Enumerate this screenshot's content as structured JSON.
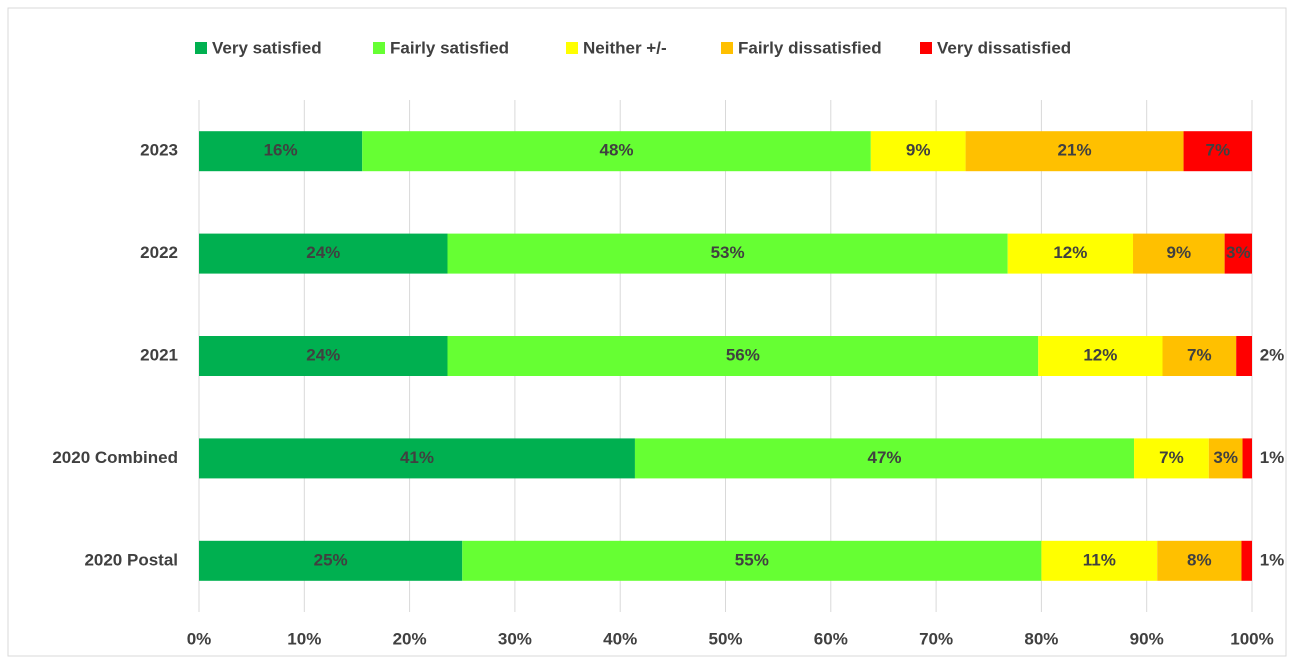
{
  "chart_data": {
    "type": "stacked_bar_horizontal",
    "categories": [
      "2023",
      "2022",
      "2021",
      "2020 Combined",
      "2020 Postal"
    ],
    "series": [
      {
        "name": "Very satisfied",
        "color": "#00b050",
        "values": [
          15.5,
          23.6,
          23.6,
          41.4,
          25.0
        ],
        "value_labels": [
          "16%",
          "24%",
          "24%",
          "41%",
          "25%"
        ]
      },
      {
        "name": "Fairly satisfied",
        "color": "#66ff33",
        "values": [
          48.3,
          53.2,
          56.1,
          47.4,
          55.0
        ],
        "value_labels": [
          "48%",
          "53%",
          "56%",
          "47%",
          "55%"
        ]
      },
      {
        "name": "Neither +/-",
        "color": "#ffff00",
        "values": [
          9.0,
          11.9,
          11.8,
          7.1,
          11.0
        ],
        "value_labels": [
          "9%",
          "12%",
          "12%",
          "7%",
          "11%"
        ]
      },
      {
        "name": "Fairly dissatisfied",
        "color": "#ffc000",
        "values": [
          20.7,
          8.7,
          7.0,
          3.2,
          8.0
        ],
        "value_labels": [
          "21%",
          "9%",
          "7%",
          "3%",
          "8%"
        ]
      },
      {
        "name": "Very dissatisfied",
        "color": "#ff0000",
        "values": [
          6.5,
          2.6,
          1.5,
          0.9,
          1.0
        ],
        "value_labels": [
          "7%",
          "3%",
          "2%",
          "1%",
          "1%"
        ]
      }
    ],
    "xlim": [
      0,
      100
    ],
    "xticks": [
      {
        "value": 0,
        "label": "0%"
      },
      {
        "value": 10,
        "label": "10%"
      },
      {
        "value": 20,
        "label": "20%"
      },
      {
        "value": 30,
        "label": "30%"
      },
      {
        "value": 40,
        "label": "40%"
      },
      {
        "value": 50,
        "label": "50%"
      },
      {
        "value": 60,
        "label": "60%"
      },
      {
        "value": 70,
        "label": "70%"
      },
      {
        "value": 80,
        "label": "80%"
      },
      {
        "value": 90,
        "label": "90%"
      },
      {
        "value": 100,
        "label": "100%"
      }
    ],
    "grid": true,
    "legend": "top"
  }
}
